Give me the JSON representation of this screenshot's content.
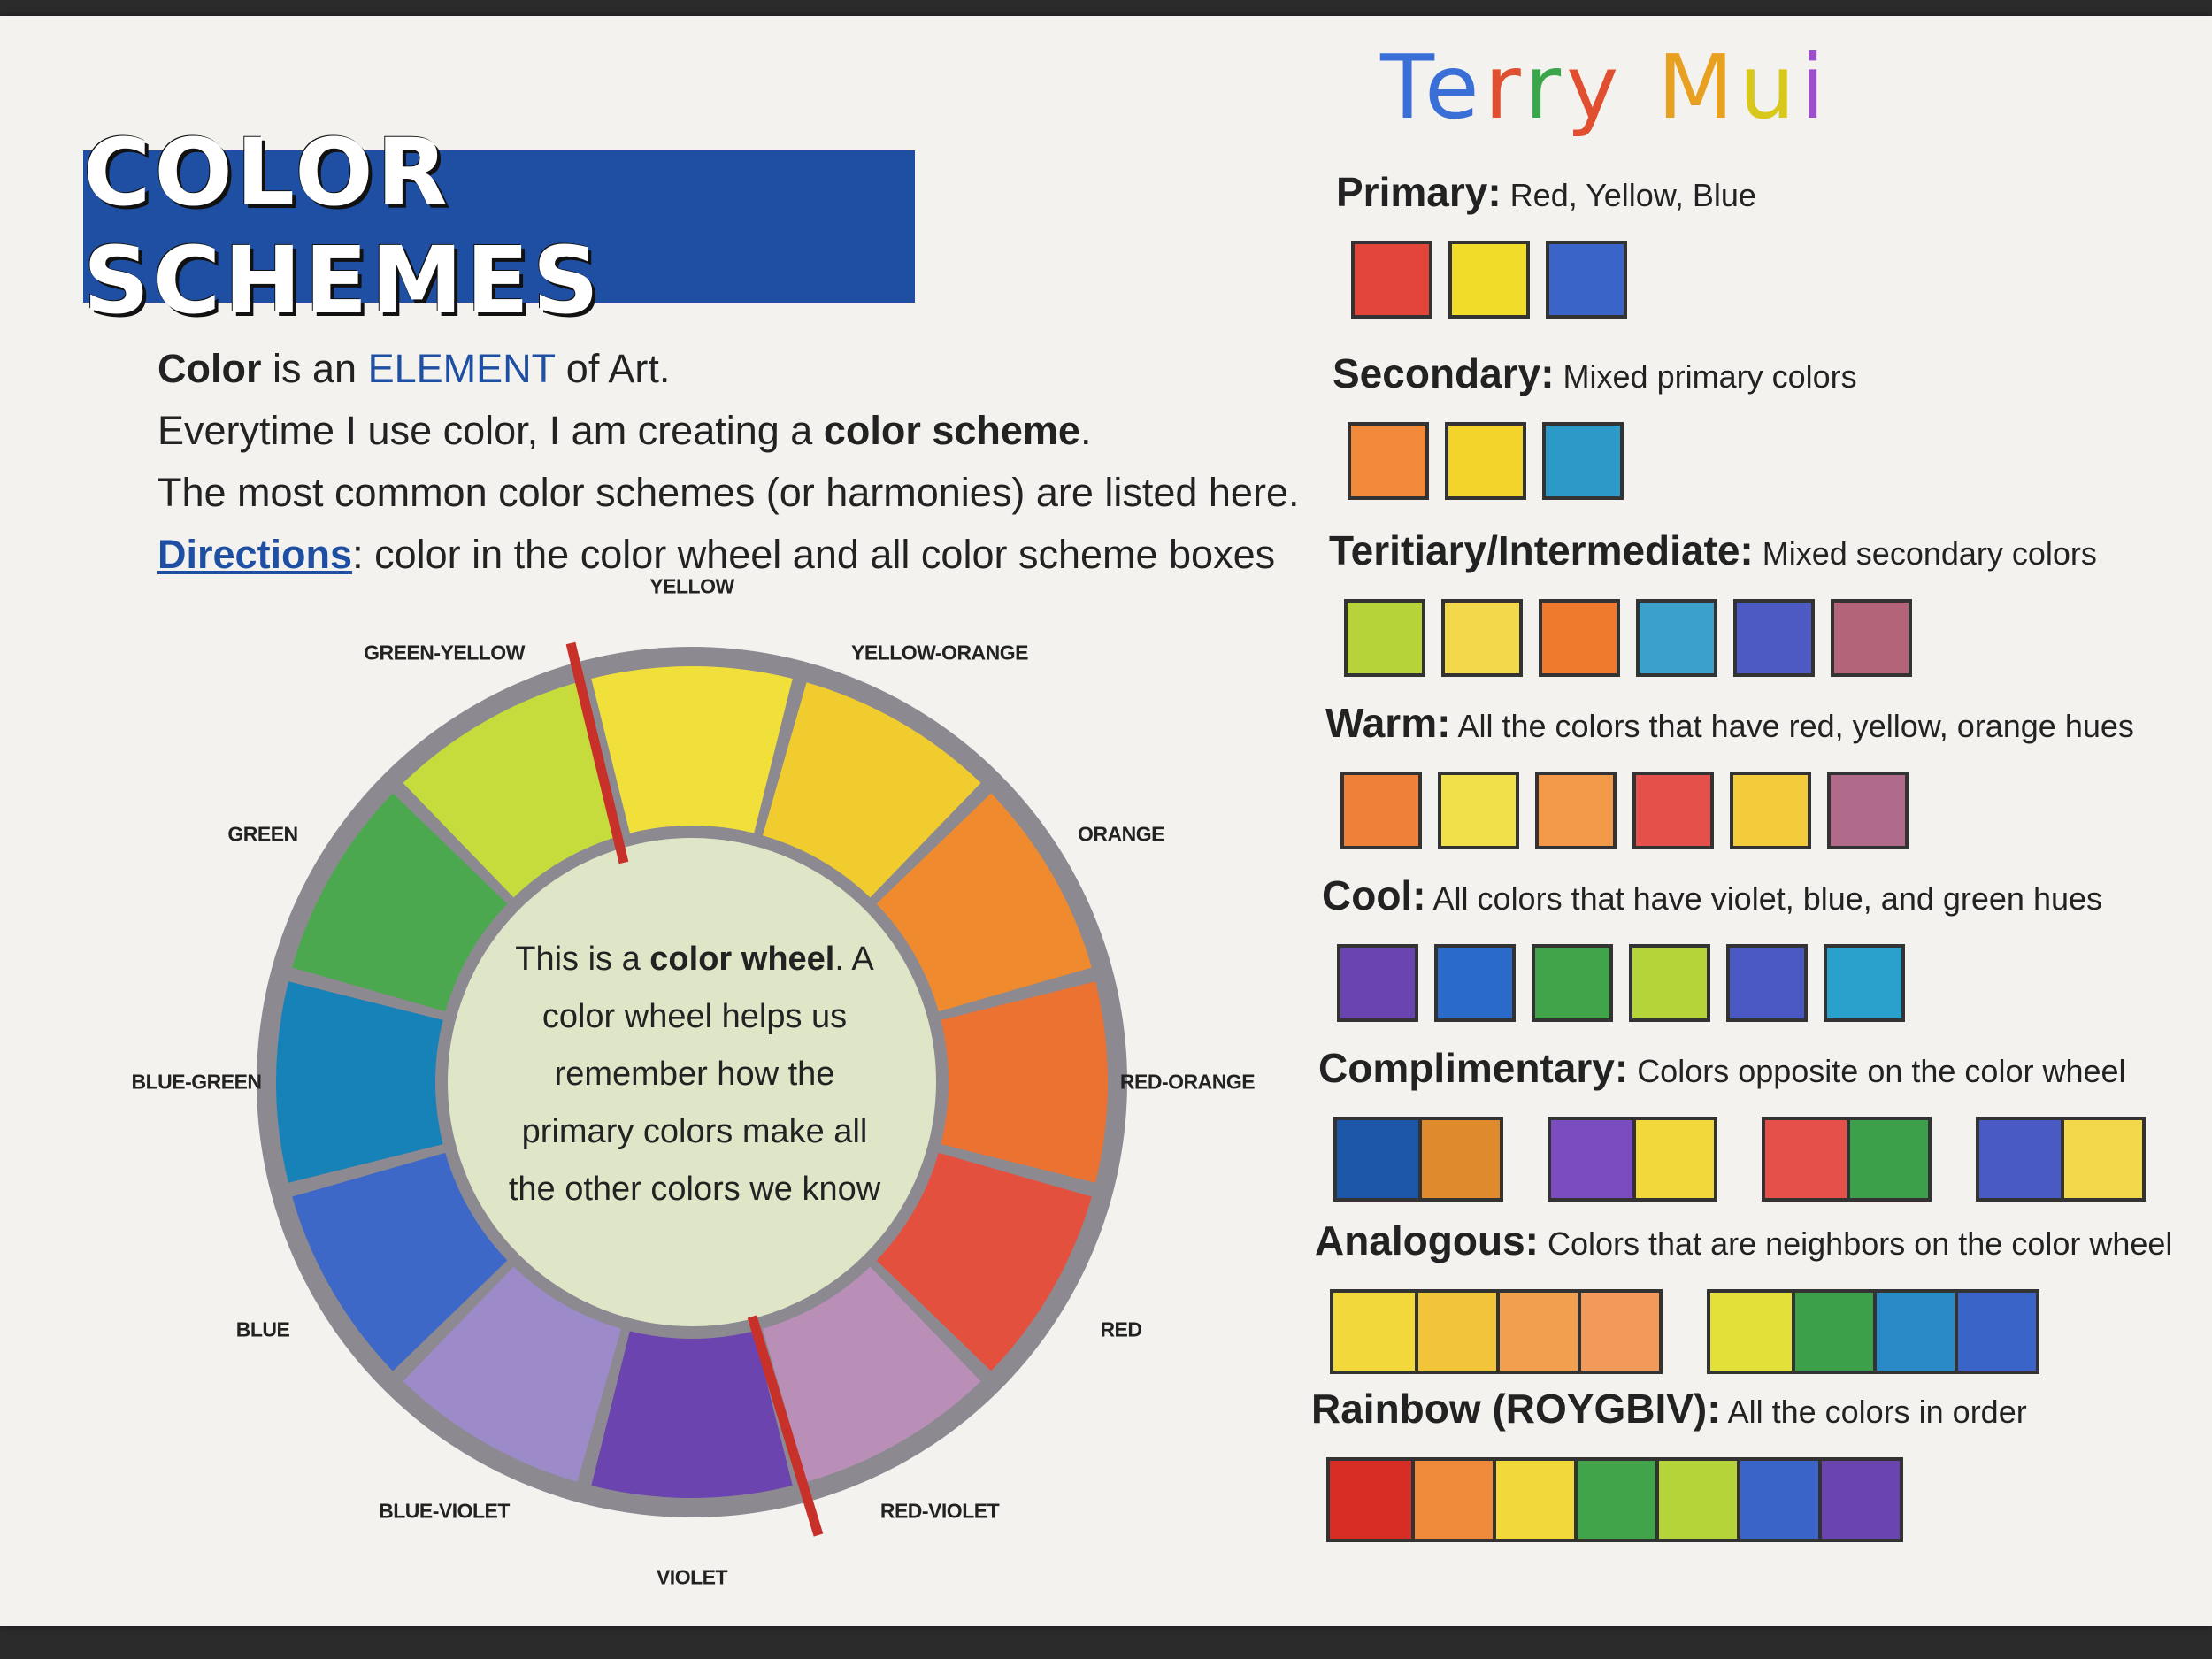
{
  "title": "COLOR SCHEMES",
  "signature": "Terry Mui",
  "intro": {
    "line1": {
      "b": "Color",
      "t1": " is an ",
      "accent": "ELEMENT",
      "t2": " of Art."
    },
    "line2": {
      "t1": "Everytime I use color, I am creating a ",
      "b": "color scheme",
      "t2": "."
    },
    "line3": "The most common color schemes (or harmonies) are listed here.",
    "line4": {
      "dir": "Directions",
      "t": ": color in the color wheel and all color scheme boxes"
    }
  },
  "wheel": {
    "center": {
      "t1": "This is a ",
      "b": "color wheel",
      "t2": ". A color wheel helps us remember how the primary colors make all the other colors we know"
    },
    "segments": [
      {
        "label": "YELLOW",
        "color": "#f2e03a"
      },
      {
        "label": "YELLOW-ORANGE",
        "color": "#f1cc2e"
      },
      {
        "label": "ORANGE",
        "color": "#f08a2e"
      },
      {
        "label": "RED-ORANGE",
        "color": "#ec7232"
      },
      {
        "label": "RED",
        "color": "#e4503e"
      },
      {
        "label": "RED-VIOLET",
        "color": "#b98fb8"
      },
      {
        "label": "VIOLET",
        "color": "#6c44b0"
      },
      {
        "label": "BLUE-VIOLET",
        "color": "#9d8ac8"
      },
      {
        "label": "BLUE",
        "color": "#3e68c8"
      },
      {
        "label": "BLUE-GREEN",
        "color": "#1682b8"
      },
      {
        "label": "GREEN",
        "color": "#4ca84e"
      },
      {
        "label": "GREEN-YELLOW",
        "color": "#c6dc3c"
      }
    ]
  },
  "schemes": [
    {
      "name": "Primary:",
      "desc": "Red, Yellow, Blue",
      "groups": [
        [
          "#e4453a",
          "#f2dc2a",
          "#3a64c8"
        ]
      ],
      "separate": true
    },
    {
      "name": "Secondary:",
      "desc": "Mixed primary colors",
      "groups": [
        [
          "#f08a3a",
          "#f2d42a",
          "#2c9ac8"
        ]
      ],
      "separate": true
    },
    {
      "name": "Teritiary/Intermediate:",
      "desc": "Mixed secondary colors",
      "groups": [
        [
          "#b6d43a",
          "#f2d84a",
          "#ef7a2e",
          "#3ca0cc",
          "#4e5ac4",
          "#b46478"
        ]
      ],
      "separate": true
    },
    {
      "name": "Warm:",
      "desc": "All the colors that have red, yellow, orange hues",
      "groups": [
        [
          "#ef803a",
          "#f2e04a",
          "#f29a4a",
          "#e5504a",
          "#f2cc3a",
          "#b06a8a"
        ]
      ],
      "separate": true
    },
    {
      "name": "Cool:",
      "desc": "All colors that have violet, blue, and green hues",
      "groups": [
        [
          "#6a44b0",
          "#2a6ac8",
          "#42a44a",
          "#b4d43a",
          "#4a58c4",
          "#2aa0cc"
        ]
      ],
      "separate": true
    },
    {
      "name": "Complimentary:",
      "desc": "Colors opposite on the color wheel",
      "groups": [
        [
          "#1c56a8",
          "#e08a2e"
        ],
        [
          "#7a4cc0",
          "#f2d83a"
        ],
        [
          "#e5504a",
          "#3ca04a"
        ],
        [
          "#4a5ac4",
          "#f2d84a"
        ]
      ],
      "separate": false
    },
    {
      "name": "Analogous:",
      "desc": "Colors that are neighbors on the color wheel",
      "groups": [
        [
          "#f2d83a",
          "#f2c43a",
          "#f2a050",
          "#f29a5a"
        ],
        [
          "#e4e03a",
          "#3ca04a",
          "#2a8ac8",
          "#3a64c8"
        ]
      ],
      "separate": false
    },
    {
      "name": "Rainbow (ROYGBIV):",
      "desc": "All the colors in order",
      "groups": [
        [
          "#d62e24",
          "#ef8a3a",
          "#f2d83a",
          "#42a44a",
          "#b4d43a",
          "#3a64c8",
          "#6a44b0"
        ]
      ],
      "separate": false
    }
  ]
}
